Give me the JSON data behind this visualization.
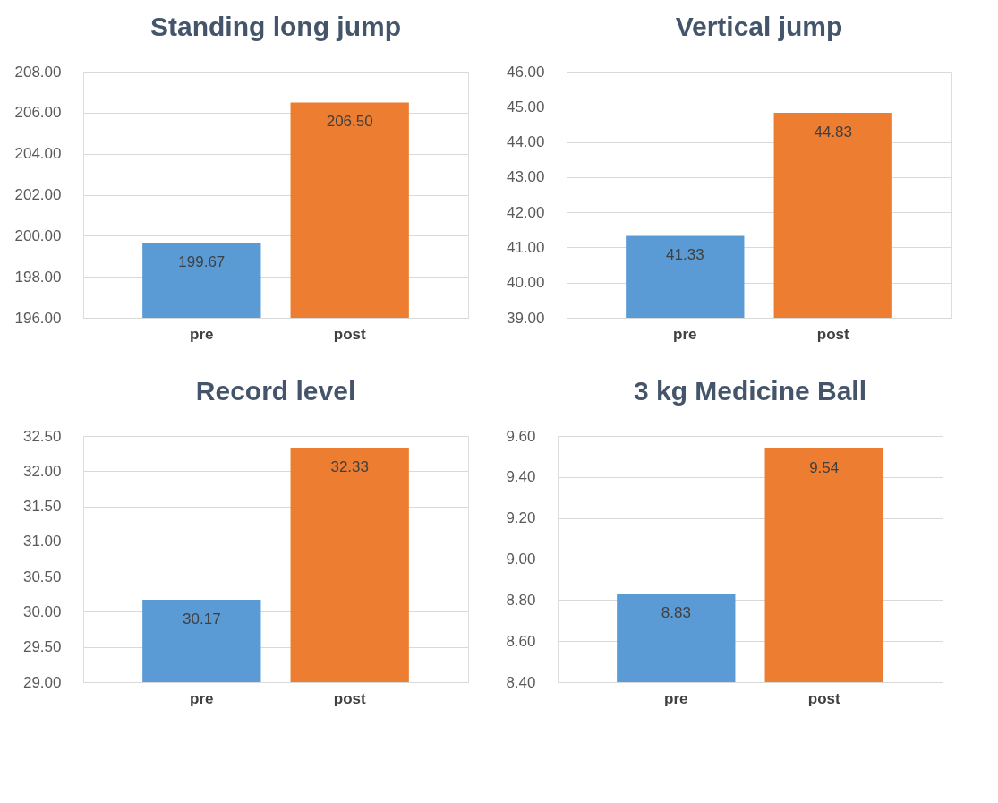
{
  "chart_data": [
    {
      "type": "bar",
      "title": "Standing long jump",
      "categories": [
        "pre",
        "post"
      ],
      "values": [
        199.67,
        206.5
      ],
      "value_labels": [
        "199.67",
        "206.50"
      ],
      "colors": [
        "#5b9bd5",
        "#ed7d31"
      ],
      "ylim": [
        196,
        208
      ],
      "yticks": [
        {
          "value": 196,
          "label": "196.00"
        },
        {
          "value": 198,
          "label": "198.00"
        },
        {
          "value": 200,
          "label": "200.00"
        },
        {
          "value": 202,
          "label": "202.00"
        },
        {
          "value": 204,
          "label": "204.00"
        },
        {
          "value": 206,
          "label": "206.00"
        },
        {
          "value": 208,
          "label": "208.00"
        }
      ],
      "grid": "y"
    },
    {
      "type": "bar",
      "title": "Vertical jump",
      "categories": [
        "pre",
        "post"
      ],
      "values": [
        41.33,
        44.83
      ],
      "value_labels": [
        "41.33",
        "44.83"
      ],
      "colors": [
        "#5b9bd5",
        "#ed7d31"
      ],
      "ylim": [
        39,
        46
      ],
      "yticks": [
        {
          "value": 39,
          "label": "39.00"
        },
        {
          "value": 40,
          "label": "40.00"
        },
        {
          "value": 41,
          "label": "41.00"
        },
        {
          "value": 42,
          "label": "42.00"
        },
        {
          "value": 43,
          "label": "43.00"
        },
        {
          "value": 44,
          "label": "44.00"
        },
        {
          "value": 45,
          "label": "45.00"
        },
        {
          "value": 46,
          "label": "46.00"
        }
      ],
      "grid": "y"
    },
    {
      "type": "bar",
      "title": "Record level",
      "categories": [
        "pre",
        "post"
      ],
      "values": [
        30.17,
        32.33
      ],
      "value_labels": [
        "30.17",
        "32.33"
      ],
      "colors": [
        "#5b9bd5",
        "#ed7d31"
      ],
      "ylim": [
        29,
        32.5
      ],
      "yticks": [
        {
          "value": 29,
          "label": "29.00"
        },
        {
          "value": 29.5,
          "label": "29.50"
        },
        {
          "value": 30,
          "label": "30.00"
        },
        {
          "value": 30.5,
          "label": "30.50"
        },
        {
          "value": 31,
          "label": "31.00"
        },
        {
          "value": 31.5,
          "label": "31.50"
        },
        {
          "value": 32,
          "label": "32.00"
        },
        {
          "value": 32.5,
          "label": "32.50"
        }
      ],
      "grid": "y"
    },
    {
      "type": "bar",
      "title": "3 kg Medicine Ball",
      "categories": [
        "pre",
        "post"
      ],
      "values": [
        8.83,
        9.54
      ],
      "value_labels": [
        "8.83",
        "9.54"
      ],
      "colors": [
        "#5b9bd5",
        "#ed7d31"
      ],
      "ylim": [
        8.4,
        9.6
      ],
      "yticks": [
        {
          "value": 8.4,
          "label": "8.40"
        },
        {
          "value": 8.6,
          "label": "8.60"
        },
        {
          "value": 8.8,
          "label": "8.80"
        },
        {
          "value": 9.0,
          "label": "9.00"
        },
        {
          "value": 9.2,
          "label": "9.20"
        },
        {
          "value": 9.4,
          "label": "9.40"
        },
        {
          "value": 9.6,
          "label": "9.60"
        }
      ],
      "grid": "y"
    }
  ]
}
